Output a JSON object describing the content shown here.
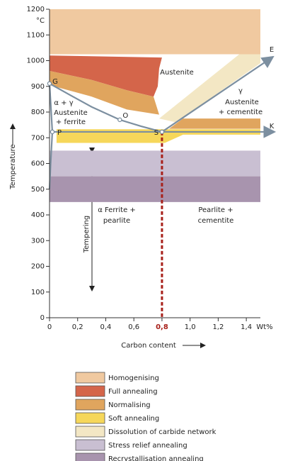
{
  "chart_data": {
    "type": "phase-diagram",
    "xlabel": "Carbon content",
    "ylabel": "Temperature",
    "yunit": "°C",
    "xunit": "Wt%",
    "xlim": [
      0,
      1.5
    ],
    "ylim": [
      0,
      1200
    ],
    "xticks": [
      0,
      {
        "value": 0.2,
        "label": "0,2"
      },
      {
        "value": 0.4,
        "label": "0,4"
      },
      {
        "value": 0.6,
        "label": "0,6"
      },
      {
        "value": 0.8,
        "label": "0,8"
      },
      {
        "value": 1.0,
        "label": "1,0"
      },
      {
        "value": 1.2,
        "label": "1,2"
      },
      {
        "value": 1.4,
        "label": "1,4"
      }
    ],
    "yticks": [
      0,
      100,
      200,
      300,
      400,
      500,
      600,
      700,
      800,
      900,
      1000,
      1100,
      1200
    ],
    "regions": [
      {
        "name": "Homogenising",
        "color": "#f0c9a0",
        "polygons": [
          [
            [
              0,
              1025
            ],
            [
              1.5,
              1025
            ],
            [
              1.5,
              1200
            ],
            [
              0,
              1200
            ]
          ]
        ]
      },
      {
        "name": "Full annealing",
        "color": "#d4654a",
        "polygons": [
          [
            [
              0,
              1020
            ],
            [
              0.8,
              1012
            ],
            [
              0.78,
              970
            ],
            [
              0.77,
              900
            ],
            [
              0.74,
              860
            ],
            [
              0.55,
              885
            ],
            [
              0.3,
              925
            ],
            [
              0,
              960
            ]
          ]
        ]
      },
      {
        "name": "Normalising",
        "color": "#e0a55e",
        "polygons": [
          [
            [
              0,
              960
            ],
            [
              0.3,
              925
            ],
            [
              0.55,
              885
            ],
            [
              0.74,
              860
            ],
            [
              0.78,
              790
            ],
            [
              0.55,
              810
            ],
            [
              0.3,
              860
            ],
            [
              0,
              905
            ]
          ],
          [
            [
              0.85,
              735
            ],
            [
              1.5,
              735
            ],
            [
              1.5,
              775
            ],
            [
              0.95,
              775
            ]
          ]
        ]
      },
      {
        "name": "Soft annealing",
        "color": "#f6d75a",
        "polygons": [
          [
            [
              0.05,
              680
            ],
            [
              0.82,
              680
            ],
            [
              0.95,
              712
            ],
            [
              1.5,
              712
            ],
            [
              1.5,
              733
            ],
            [
              0.05,
              733
            ]
          ]
        ]
      },
      {
        "name": "Dissolution of carbide network",
        "color": "#f3e7c4",
        "polygons": [
          [
            [
              0.78,
              775
            ],
            [
              1.35,
              1025
            ],
            [
              1.5,
              1025
            ],
            [
              1.5,
              990
            ],
            [
              0.9,
              760
            ]
          ]
        ]
      },
      {
        "name": "Stress relief annealing",
        "color": "#c9bfd2",
        "polygons": [
          [
            [
              0,
              550
            ],
            [
              1.5,
              550
            ],
            [
              1.5,
              650
            ],
            [
              0,
              650
            ]
          ]
        ]
      },
      {
        "name": "Recrystallisation annealing",
        "color": "#a894ae",
        "polygons": [
          [
            [
              0,
              450
            ],
            [
              1.5,
              450
            ],
            [
              1.5,
              550
            ],
            [
              0,
              550
            ]
          ]
        ]
      }
    ],
    "curves": [
      {
        "color": "#7c8fa0",
        "points": [
          [
            0,
            911
          ],
          [
            0.15,
            865
          ],
          [
            0.3,
            820
          ],
          [
            0.5,
            770
          ],
          [
            0.65,
            745
          ],
          [
            0.8,
            723
          ]
        ]
      },
      {
        "color": "#7c8fa0",
        "points": [
          [
            0.8,
            723
          ],
          [
            1.59,
            1015
          ]
        ]
      },
      {
        "color": "#7c8fa0",
        "points": [
          [
            0.02,
            723
          ],
          [
            1.6,
            723
          ]
        ]
      },
      {
        "color": "#7c8fa0",
        "points": [
          [
            0,
            911
          ],
          [
            0.02,
            723
          ]
        ]
      },
      {
        "color": "#7c8fa0",
        "points": [
          [
            0.02,
            723
          ],
          [
            0.008,
            600
          ],
          [
            0,
            500
          ]
        ]
      },
      {
        "color": "#a8201a",
        "points": [
          [
            0.8,
            723
          ],
          [
            0.8,
            0
          ]
        ]
      }
    ],
    "points": [
      {
        "label": "G",
        "x": 0,
        "y": 911
      },
      {
        "label": "O",
        "x": 0.5,
        "y": 770
      },
      {
        "label": "P",
        "x": 0.02,
        "y": 723
      },
      {
        "label": "S",
        "x": 0.8,
        "y": 723
      }
    ],
    "annotations": [
      "Austenite",
      "α + γ",
      "Austenite",
      "+ ferrite",
      "γ",
      "Austenite",
      "+ cementite",
      "E",
      "K",
      "α  Ferrite +",
      "pearlite",
      "Pearlite +",
      "cementite",
      "Tempering"
    ]
  }
}
